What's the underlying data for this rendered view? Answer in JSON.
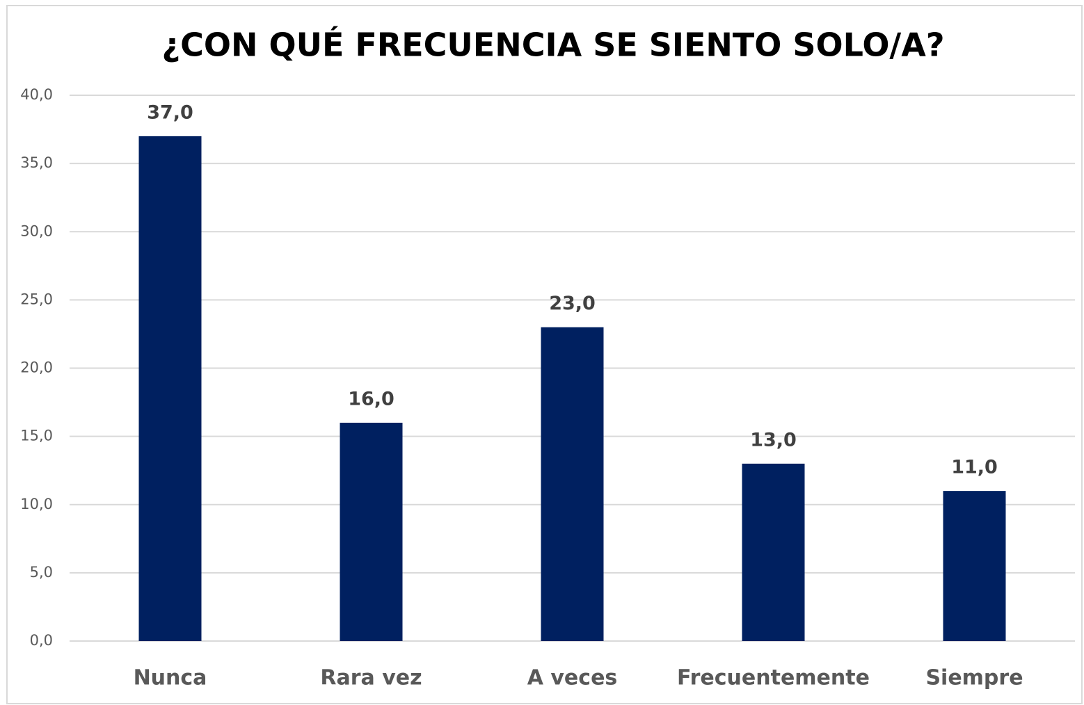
{
  "chart_data": {
    "type": "bar",
    "title": "¿CON QUÉ FRECUENCIA SE SIENTO SOLO/A?",
    "categories": [
      "Nunca",
      "Rara vez",
      "A veces",
      "Frecuentemente",
      "Siempre"
    ],
    "values": [
      37,
      16,
      23,
      13,
      11
    ],
    "value_labels": [
      "37,0",
      "16,0",
      "23,0",
      "13,0",
      "11,0"
    ],
    "color": "#002060",
    "ylim": [
      0,
      40
    ],
    "yticks": [
      {
        "value": 0,
        "label": "0,0"
      },
      {
        "value": 5,
        "label": "5,0"
      },
      {
        "value": 10,
        "label": "10,0"
      },
      {
        "value": 15,
        "label": "15,0"
      },
      {
        "value": 20,
        "label": "20,0"
      },
      {
        "value": 25,
        "label": "25,0"
      },
      {
        "value": 30,
        "label": "30,0"
      },
      {
        "value": 35,
        "label": "35,0"
      },
      {
        "value": 40,
        "label": "40,0"
      }
    ],
    "grid": true
  }
}
